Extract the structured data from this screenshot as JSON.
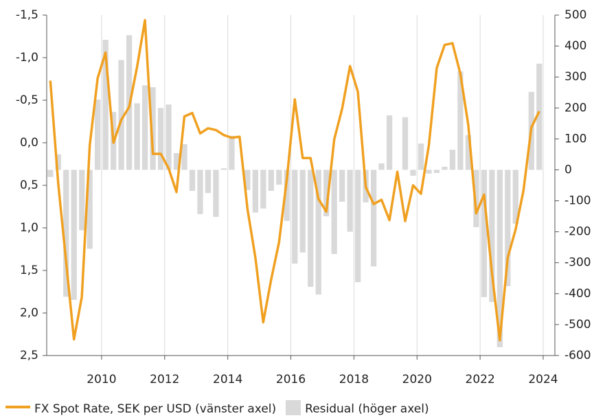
{
  "chart_data": {
    "type": "combo",
    "x": [
      2008.375,
      2008.625,
      2008.875,
      2009.125,
      2009.375,
      2009.625,
      2009.875,
      2010.125,
      2010.375,
      2010.625,
      2010.875,
      2011.125,
      2011.375,
      2011.625,
      2011.875,
      2012.125,
      2012.375,
      2012.625,
      2012.875,
      2013.125,
      2013.375,
      2013.625,
      2013.875,
      2014.125,
      2014.375,
      2014.625,
      2014.875,
      2015.125,
      2015.375,
      2015.625,
      2015.875,
      2016.125,
      2016.375,
      2016.625,
      2016.875,
      2017.125,
      2017.375,
      2017.625,
      2017.875,
      2018.125,
      2018.375,
      2018.625,
      2018.875,
      2019.125,
      2019.375,
      2019.625,
      2019.875,
      2020.125,
      2020.375,
      2020.625,
      2020.875,
      2021.125,
      2021.375,
      2021.625,
      2021.875,
      2022.125,
      2022.375,
      2022.625,
      2022.875,
      2023.125,
      2023.375,
      2023.625,
      2023.875,
      2024.125
    ],
    "series": [
      {
        "name": "Residual (höger axel)",
        "type": "bar",
        "axis": "y2",
        "color": "#d9d9d9",
        "values": [
          -23,
          50,
          -410,
          -420,
          -195,
          -255,
          227,
          420,
          187,
          355,
          435,
          215,
          273,
          267,
          200,
          211,
          54,
          83,
          -68,
          -143,
          -75,
          -152,
          5,
          110,
          0,
          -65,
          -138,
          -125,
          -68,
          -48,
          -165,
          -303,
          -267,
          -378,
          -403,
          -150,
          -272,
          -103,
          -200,
          -363,
          -105,
          -312,
          21,
          176,
          0,
          170,
          -19,
          85,
          -12,
          -10,
          10,
          65,
          318,
          112,
          -185,
          -411,
          -427,
          -573,
          -376,
          -174,
          0,
          252,
          343,
          0
        ]
      },
      {
        "name": "FX Spot Rate, SEK per USD (vänster axel)",
        "type": "line",
        "axis": "y",
        "color": "#f0a020",
        "values": [
          -0.73,
          0.48,
          1.39,
          2.31,
          1.81,
          0.03,
          -0.76,
          -1.06,
          0.0,
          -0.27,
          -0.42,
          -0.89,
          -1.44,
          0.13,
          0.13,
          0.3,
          0.58,
          -0.31,
          -0.35,
          -0.11,
          -0.17,
          -0.15,
          -0.09,
          -0.06,
          -0.07,
          0.78,
          1.35,
          2.11,
          1.61,
          1.17,
          0.42,
          -0.51,
          0.18,
          0.18,
          0.66,
          0.81,
          -0.04,
          -0.4,
          -0.9,
          -0.6,
          0.52,
          0.72,
          0.67,
          0.91,
          0.34,
          0.92,
          0.5,
          0.6,
          0.03,
          -0.88,
          -1.15,
          -1.17,
          -0.81,
          -0.21,
          0.83,
          0.61,
          1.53,
          2.32,
          1.35,
          1.02,
          0.56,
          -0.18,
          -0.37,
          null
        ]
      }
    ],
    "xlim": [
      2008.26,
      2024.37
    ],
    "xticks": [
      2010,
      2012,
      2014,
      2016,
      2018,
      2020,
      2022,
      2024
    ],
    "ylim": [
      2.5,
      -1.5
    ],
    "yticks": [
      {
        "value": -1.5,
        "label": "-1,5"
      },
      {
        "value": -1,
        "label": "-1,0"
      },
      {
        "value": -0.5,
        "label": "-0,5"
      },
      {
        "value": 0,
        "label": "0,0"
      },
      {
        "value": 0.5,
        "label": "0,5"
      },
      {
        "value": 1,
        "label": "1,0"
      },
      {
        "value": 1.5,
        "label": "1,5"
      },
      {
        "value": 2,
        "label": "2,0"
      },
      {
        "value": 2.5,
        "label": "2,5"
      }
    ],
    "y2lim": [
      -600,
      500
    ],
    "y2ticks": [
      500,
      400,
      300,
      200,
      100,
      0,
      -100,
      -200,
      -300,
      -400,
      -500,
      -600
    ],
    "grid": "x"
  }
}
